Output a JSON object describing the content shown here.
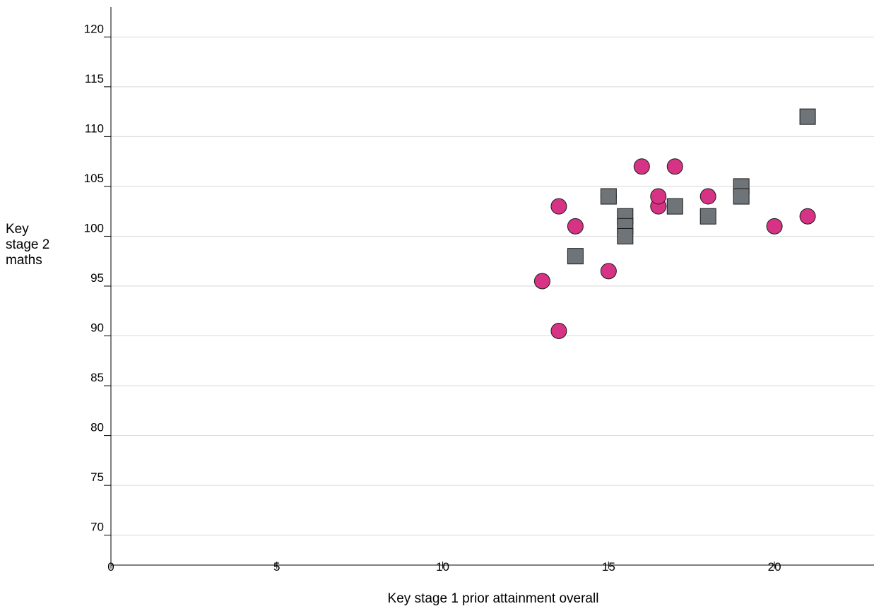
{
  "chart_data": {
    "type": "scatter",
    "xlabel": "Key stage 1 prior attainment overall",
    "ylabel": [
      "Key",
      "stage 2",
      "maths"
    ],
    "xlim": [
      0,
      23
    ],
    "ylim": [
      67,
      123
    ],
    "x_ticks": [
      0,
      5,
      10,
      15,
      20
    ],
    "x_tick_labels": [
      "0",
      "5",
      "10",
      "15",
      "20"
    ],
    "y_ticks": [
      70,
      75,
      80,
      85,
      90,
      95,
      100,
      105,
      110,
      115,
      120
    ],
    "y_tick_labels": [
      "70",
      "75",
      "80",
      "85",
      "90",
      "95",
      "100",
      "105",
      "110",
      "115",
      "120"
    ],
    "grid": true,
    "series": [
      {
        "marker": "circle",
        "color": "#d63384",
        "points": [
          [
            13.0,
            95.5
          ],
          [
            13.5,
            103.0
          ],
          [
            13.5,
            90.5
          ],
          [
            14.0,
            101.0
          ],
          [
            15.0,
            104.0
          ],
          [
            15.0,
            96.5
          ],
          [
            16.0,
            107.0
          ],
          [
            16.5,
            103.0
          ],
          [
            16.5,
            104.0
          ],
          [
            17.0,
            107.0
          ],
          [
            18.0,
            104.0
          ],
          [
            20.0,
            101.0
          ],
          [
            21.0,
            102.0
          ]
        ]
      },
      {
        "marker": "square",
        "color": "#6f7478",
        "points": [
          [
            14.0,
            98.0
          ],
          [
            15.0,
            104.0
          ],
          [
            15.5,
            102.0
          ],
          [
            15.5,
            101.0
          ],
          [
            15.5,
            100.0
          ],
          [
            17.0,
            103.0
          ],
          [
            18.0,
            102.0
          ],
          [
            19.0,
            105.0
          ],
          [
            19.0,
            104.0
          ],
          [
            21.0,
            112.0
          ]
        ]
      }
    ]
  }
}
